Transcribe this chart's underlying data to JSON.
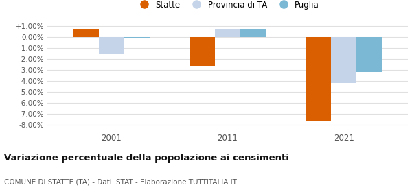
{
  "years": [
    2001,
    2011,
    2021
  ],
  "statte": [
    0.65,
    -2.65,
    -7.6
  ],
  "provincia_ta": [
    -1.6,
    0.75,
    -4.2
  ],
  "puglia": [
    -0.1,
    0.65,
    -3.2
  ],
  "colors": {
    "statte": "#d95f00",
    "provincia_ta": "#c5d4e8",
    "puglia": "#7ab8d4"
  },
  "legend_labels": [
    "Statte",
    "Provincia di TA",
    "Puglia"
  ],
  "yticks": [
    1.0,
    0.0,
    -1.0,
    -2.0,
    -3.0,
    -4.0,
    -5.0,
    -6.0,
    -7.0,
    -8.0
  ],
  "ytick_labels": [
    "+1.00%",
    "0.00%",
    "-1.00%",
    "-2.00%",
    "-3.00%",
    "-4.00%",
    "-5.00%",
    "-6.00%",
    "-7.00%",
    "-8.00%"
  ],
  "ylim": [
    -8.5,
    1.6
  ],
  "title": "Variazione percentuale della popolazione ai censimenti",
  "subtitle": "COMUNE DI STATTE (TA) - Dati ISTAT - Elaborazione TUTTITALIA.IT",
  "bar_width": 0.22,
  "background_color": "#ffffff",
  "grid_color": "#e0e0e0"
}
